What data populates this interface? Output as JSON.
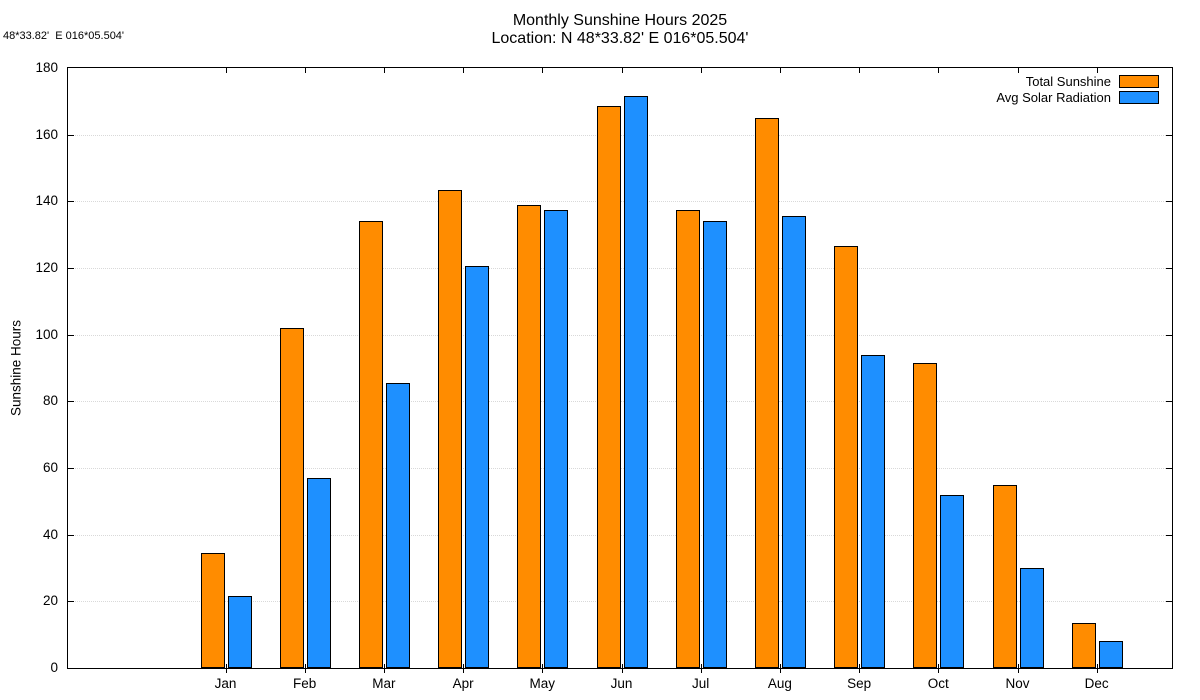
{
  "corner_text": "48*33.82'  E 016*05.504'",
  "header": {
    "title": "Monthly Sunshine Hours 2025",
    "subtitle": "Location: N 48*33.82'  E 016*05.504'"
  },
  "chart_data": {
    "type": "bar",
    "title": "Monthly Sunshine Hours 2025",
    "subtitle": "Location: N 48*33.82'  E 016*05.504'",
    "xlabel": "",
    "ylabel": "Sunshine Hours",
    "ylim": [
      0,
      180
    ],
    "yticks": [
      0,
      20,
      40,
      60,
      80,
      100,
      120,
      140,
      160,
      180
    ],
    "grid": "horizontal-dotted",
    "legend_position": "top-right-inside",
    "categories": [
      "Jan",
      "Feb",
      "Mar",
      "Apr",
      "May",
      "Jun",
      "Jul",
      "Aug",
      "Sep",
      "Oct",
      "Nov",
      "Dec"
    ],
    "series": [
      {
        "name": "Total Sunshine",
        "color": "#FF8C00",
        "values": [
          34.5,
          102,
          134,
          143.5,
          139,
          168.5,
          137.5,
          165,
          126.5,
          91.5,
          55,
          13.5
        ]
      },
      {
        "name": "Avg Solar Radiation",
        "color": "#1E90FF",
        "values": [
          21.5,
          57,
          85.5,
          120.5,
          137.5,
          171.5,
          134,
          135.5,
          94,
          52,
          30,
          8
        ]
      }
    ]
  }
}
